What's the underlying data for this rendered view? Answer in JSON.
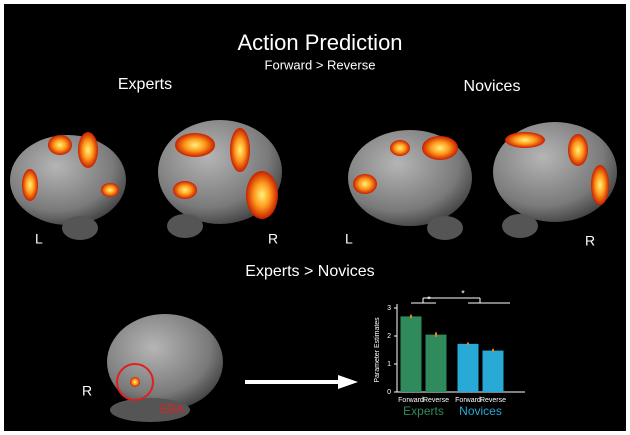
{
  "figure": {
    "title": "Action Prediction",
    "subtitle": "Forward > Reverse",
    "group_left": "Experts",
    "group_right": "Novices",
    "side_labels": [
      "L",
      "R",
      "L",
      "R"
    ],
    "contrast": "Experts > Novices",
    "bottom_side": "R",
    "region": "EBA"
  },
  "chart_data": {
    "type": "bar",
    "ylabel": "Parameter Estimates",
    "categories": [
      "Forward",
      "Reverse",
      "Forward",
      "Reverse"
    ],
    "values": [
      2.7,
      2.05,
      1.72,
      1.48
    ],
    "errors": [
      0.06,
      0.08,
      0.05,
      0.06
    ],
    "colors": [
      "#2f8a5c",
      "#2f8a5c",
      "#29a9d6",
      "#29a9d6"
    ],
    "groups": [
      {
        "name": "Experts",
        "color": "#2f8a5c"
      },
      {
        "name": "Novices",
        "color": "#29a9d6"
      }
    ],
    "annotations": [
      "*",
      "*"
    ],
    "ylim": [
      0,
      3
    ],
    "yticks": [
      0,
      1,
      2,
      3
    ]
  }
}
